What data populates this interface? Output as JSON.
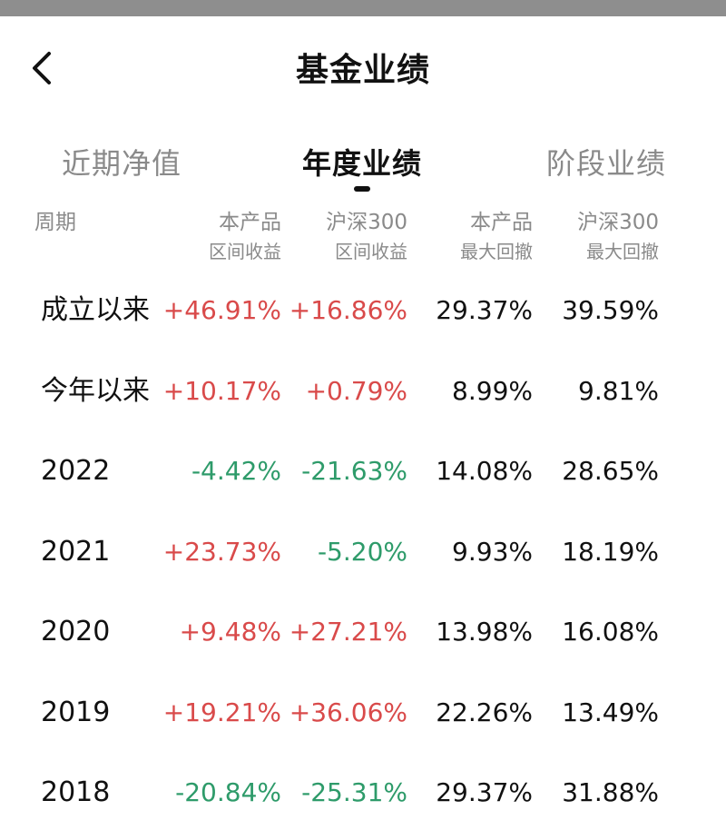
{
  "header": {
    "title": "基金业绩"
  },
  "tabs": [
    {
      "label": "近期净值",
      "active": false
    },
    {
      "label": "年度业绩",
      "active": true
    },
    {
      "label": "阶段业绩",
      "active": false
    }
  ],
  "table": {
    "columns": [
      {
        "line1": "周期",
        "line2": ""
      },
      {
        "line1": "本产品",
        "line2": "区间收益"
      },
      {
        "line1": "沪深300",
        "line2": "区间收益"
      },
      {
        "line1": "本产品",
        "line2": "最大回撤"
      },
      {
        "line1": "沪深300",
        "line2": "最大回撤"
      }
    ],
    "rows": [
      {
        "period": "成立以来",
        "product_return": "+46.91%",
        "index_return": "+16.86%",
        "product_drawdown": "29.37%",
        "index_drawdown": "39.59%"
      },
      {
        "period": "今年以来",
        "product_return": "+10.17%",
        "index_return": "+0.79%",
        "product_drawdown": "8.99%",
        "index_drawdown": "9.81%"
      },
      {
        "period": "2022",
        "product_return": "-4.42%",
        "index_return": "-21.63%",
        "product_drawdown": "14.08%",
        "index_drawdown": "28.65%"
      },
      {
        "period": "2021",
        "product_return": "+23.73%",
        "index_return": "-5.20%",
        "product_drawdown": "9.93%",
        "index_drawdown": "18.19%"
      },
      {
        "period": "2020",
        "product_return": "+9.48%",
        "index_return": "+27.21%",
        "product_drawdown": "13.98%",
        "index_drawdown": "16.08%"
      },
      {
        "period": "2019",
        "product_return": "+19.21%",
        "index_return": "+36.06%",
        "product_drawdown": "22.26%",
        "index_drawdown": "13.49%"
      },
      {
        "period": "2018",
        "product_return": "-20.84%",
        "index_return": "-25.31%",
        "product_drawdown": "29.37%",
        "index_drawdown": "31.88%"
      }
    ]
  },
  "colors": {
    "positive": "#d94a4a",
    "negative": "#2e9b6a",
    "muted": "#8a8a8a",
    "text": "#111111"
  }
}
